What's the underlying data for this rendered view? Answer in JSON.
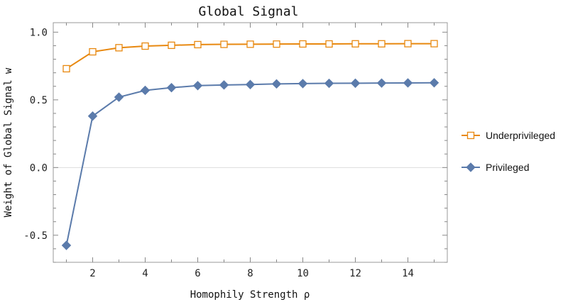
{
  "chart_data": {
    "type": "line",
    "title": "Global Signal",
    "xlabel": "Homophily Strength ρ",
    "ylabel": "Weight of Global Signal w",
    "xlim": [
      0.5,
      15.5
    ],
    "ylim": [
      -0.7,
      1.07
    ],
    "x_ticks": [
      2,
      4,
      6,
      8,
      10,
      12,
      14
    ],
    "y_ticks": [
      -0.5,
      0.0,
      0.5,
      1.0
    ],
    "x_tick_labels": [
      "2",
      "4",
      "6",
      "8",
      "10",
      "12",
      "14"
    ],
    "y_tick_labels": [
      "-0.5",
      "0.0",
      "0.5",
      "1.0"
    ],
    "legend_position": "right",
    "grid": false,
    "zero_line": true,
    "x": [
      1,
      2,
      3,
      4,
      5,
      6,
      7,
      8,
      9,
      10,
      11,
      12,
      13,
      14,
      15
    ],
    "series": [
      {
        "name": "Underprivileged",
        "color": "#e8880f",
        "marker": "open-square",
        "values": [
          0.73,
          0.855,
          0.885,
          0.897,
          0.903,
          0.908,
          0.91,
          0.911,
          0.912,
          0.913,
          0.913,
          0.914,
          0.914,
          0.915,
          0.915
        ]
      },
      {
        "name": "Privileged",
        "color": "#5b7bab",
        "marker": "filled-diamond",
        "values": [
          -0.575,
          0.38,
          0.52,
          0.57,
          0.59,
          0.605,
          0.61,
          0.613,
          0.618,
          0.62,
          0.622,
          0.623,
          0.624,
          0.625,
          0.626
        ]
      }
    ]
  }
}
